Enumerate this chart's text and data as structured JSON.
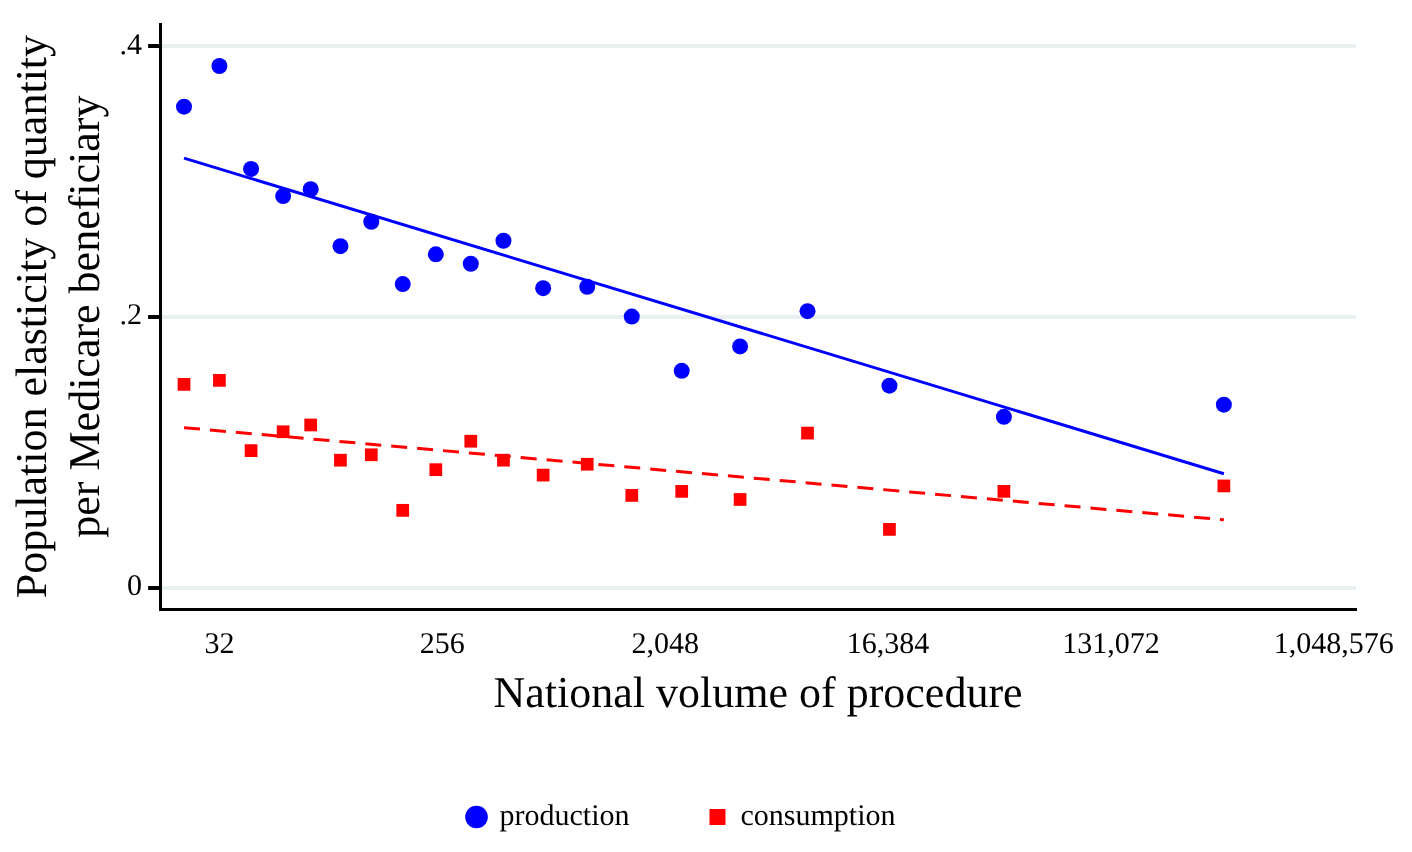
{
  "chart_data": {
    "type": "scatter",
    "xlabel": "National volume of procedure",
    "ylabel": "Population elasticity of quantity per Medicare beneficiary",
    "log": "x",
    "xlim": [
      18.4,
      1290000
    ],
    "xticks": [
      {
        "value": 32,
        "label": "32"
      },
      {
        "value": 256,
        "label": "256"
      },
      {
        "value": 2048,
        "label": "2,048"
      },
      {
        "value": 16384,
        "label": "16,384"
      },
      {
        "value": 131072,
        "label": "131,072"
      },
      {
        "value": 1048576,
        "label": "1,048,576"
      }
    ],
    "ylim": [
      -0.016,
      0.416
    ],
    "yticks": [
      {
        "value": 0,
        "label": "0"
      },
      {
        "value": 0.2,
        "label": ".2"
      },
      {
        "value": 0.4,
        "label": ".4"
      }
    ],
    "grid": "y",
    "legend": "bottom",
    "series": [
      {
        "name": "production",
        "type": "scatter",
        "marker": "circle",
        "color": "#0000ff",
        "x": [
          23,
          32,
          43,
          58,
          75,
          99,
          132,
          177,
          241,
          334,
          453,
          656,
          990,
          1500,
          2390,
          4120,
          7730,
          16600,
          48300,
          376000
        ],
        "values": [
          0.355,
          0.385,
          0.309,
          0.289,
          0.294,
          0.252,
          0.27,
          0.224,
          0.246,
          0.239,
          0.256,
          0.221,
          0.222,
          0.2,
          0.16,
          0.178,
          0.204,
          0.149,
          0.126,
          0.135
        ]
      },
      {
        "name": "consumption",
        "type": "scatter",
        "marker": "square",
        "color": "#ff0000",
        "x": [
          23,
          32,
          43,
          58,
          75,
          99,
          132,
          177,
          241,
          334,
          453,
          656,
          990,
          1500,
          2390,
          4120,
          7730,
          16600,
          48300,
          376000
        ],
        "values": [
          0.15,
          0.153,
          0.101,
          0.115,
          0.12,
          0.094,
          0.098,
          0.057,
          0.087,
          0.108,
          0.094,
          0.083,
          0.091,
          0.068,
          0.071,
          0.065,
          0.114,
          0.043,
          0.071,
          0.075
        ]
      },
      {
        "type": "line",
        "marker": "none",
        "line_style": "solid",
        "color": "#0000ff",
        "x": [
          23,
          376000
        ],
        "values": [
          0.317,
          0.084
        ]
      },
      {
        "type": "line",
        "marker": "none",
        "line_style": "dashed",
        "color": "#ff0000",
        "x": [
          23,
          376000
        ],
        "values": [
          0.118,
          0.05
        ]
      }
    ]
  }
}
